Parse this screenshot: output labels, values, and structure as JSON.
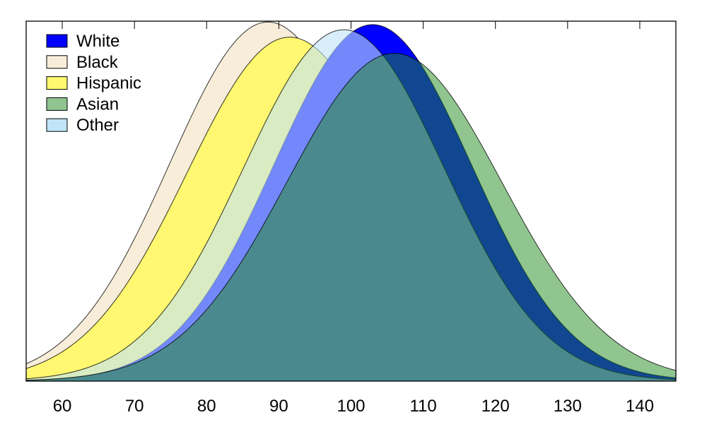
{
  "chart_data": {
    "type": "area",
    "title": "",
    "xlabel": "",
    "ylabel": "",
    "xlim": [
      55,
      145
    ],
    "ylim": [
      0,
      0.0294
    ],
    "x_ticks": [
      60,
      70,
      80,
      90,
      100,
      110,
      120,
      130,
      140
    ],
    "y_ticks_shown": false,
    "grid": false,
    "legend_position": "top-left",
    "series": [
      {
        "name": "Black",
        "mean": 88.5,
        "sd": 13.6,
        "color": "#F8EDD9",
        "opacity": 1.0
      },
      {
        "name": "Hispanic",
        "mean": 91.5,
        "sd": 14.2,
        "color": "#FFF870",
        "opacity": 1.0
      },
      {
        "name": "White",
        "mean": 103,
        "sd": 13.7,
        "color": "#0000FF",
        "opacity": 1.0
      },
      {
        "name": "Other",
        "mean": 99,
        "sd": 13.9,
        "color": "#BEE3F8",
        "opacity": 0.6
      },
      {
        "name": "Asian",
        "mean": 106,
        "sd": 14.9,
        "color": "#228B22",
        "opacity": 0.5
      }
    ],
    "legend": [
      {
        "label": "White",
        "color": "#0000FF"
      },
      {
        "label": "Black",
        "color": "#F8EDD9"
      },
      {
        "label": "Hispanic",
        "color": "#FFF870"
      },
      {
        "label": "Asian",
        "color": "#90C490"
      },
      {
        "label": "Other",
        "color": "#C0E4F8"
      }
    ]
  }
}
